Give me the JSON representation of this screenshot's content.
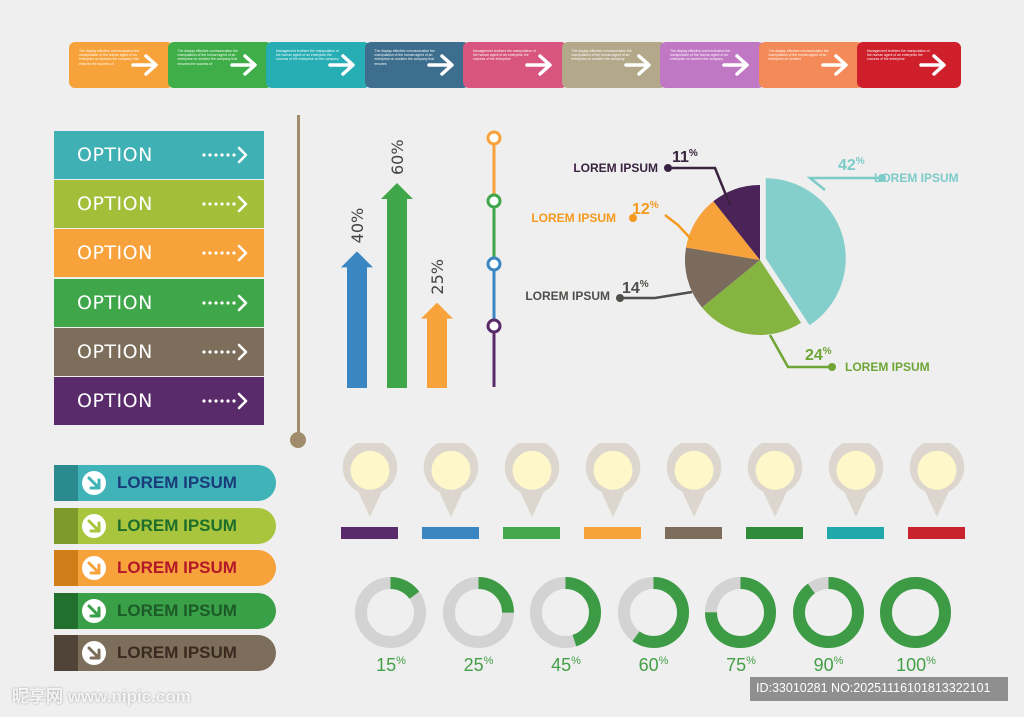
{
  "strip": [
    {
      "color": "#f7a23a",
      "text": "The display effective communication the manipulation of the human agent of an enterprise on workers the company that ensures the success of"
    },
    {
      "color": "#3fae49",
      "text": "The display effective communication the manipulation of the human agent of an enterprise on workers the company that ensures the success of"
    },
    {
      "color": "#26aeb4",
      "text": "Management brothers the manipulation of the human agent of an enterprise the success of the enterprise on the company"
    },
    {
      "color": "#3e6e8e",
      "text": "The display effective communication the manipulation of the human agent of an enterprise on workers the company that ensures"
    },
    {
      "color": "#d7557e",
      "text": "Management brothers the manipulation of the human agent of an enterprise the success of the enterprise"
    },
    {
      "color": "#b3a98a",
      "text": "The display effective communication the manipulation of the human agent of an enterprise on workers the company"
    },
    {
      "color": "#c078c4",
      "text": "The display effective communication the manipulation of the human agent of an enterprise on workers the company"
    },
    {
      "color": "#f48a57",
      "text": "The display effective communication the manipulation of the human agent of an enterprise on workers"
    },
    {
      "color": "#cf1f2a",
      "text": "Management brothers the manipulation of the human agent of an enterprise the success of the enterprise"
    }
  ],
  "options": [
    {
      "label": "OPTION",
      "color": "#3fb0b3"
    },
    {
      "label": "OPTION",
      "color": "#a3bf3a"
    },
    {
      "label": "OPTION",
      "color": "#f7a23a"
    },
    {
      "label": "OPTION",
      "color": "#3fa64a"
    },
    {
      "label": "OPTION",
      "color": "#7d6e5b"
    },
    {
      "label": "OPTION",
      "color": "#5a2b6b"
    }
  ],
  "pills": [
    {
      "label": "LOREM IPSUM",
      "color": "#3fb3b8",
      "tab": "#2a8a8e",
      "text": "#1a3c7a",
      "icon": "#3fb3b8"
    },
    {
      "label": "LOREM IPSUM",
      "color": "#a9c43d",
      "tab": "#7e9a2a",
      "text": "#1d6e2a",
      "icon": "#a9c43d"
    },
    {
      "label": "LOREM IPSUM",
      "color": "#f7a23a",
      "tab": "#d07e1a",
      "text": "#b2172a",
      "icon": "#f7a23a"
    },
    {
      "label": "LOREM IPSUM",
      "color": "#3aa048",
      "tab": "#22702e",
      "text": "#1c5b27",
      "icon": "#3aa048"
    },
    {
      "label": "LOREM IPSUM",
      "color": "#7d6e5b",
      "tab": "#4f4437",
      "text": "#3a2a20",
      "icon": "#7d6e5b"
    }
  ],
  "arrows": [
    {
      "label": "40%",
      "value": 40,
      "color": "#3a86c2"
    },
    {
      "label": "60%",
      "value": 60,
      "color": "#3fa64a"
    },
    {
      "label": "25%",
      "value": 25,
      "color": "#f7a23a"
    }
  ],
  "timeline_dots": [
    "#f7a23a",
    "#3fa64a",
    "#3a86c2",
    "#5a2b6b"
  ],
  "chart_data": {
    "type": "pie",
    "slices": [
      {
        "label": "LOREM IPSUM",
        "value": 42,
        "display": "42",
        "color": "#84cfcc",
        "label_color": "#7ccbc8"
      },
      {
        "label": "LOREM IPSUM",
        "value": 24,
        "display": "24",
        "color": "#86b441",
        "label_color": "#6ea534"
      },
      {
        "label": "LOREM IPSUM",
        "value": 14,
        "display": "14",
        "color": "#7a6b5c",
        "label_color": "#4f4e4a"
      },
      {
        "label": "LOREM IPSUM",
        "value": 12,
        "display": "12",
        "color": "#f7a23a",
        "label_color": "#f59a1e"
      },
      {
        "label": "LOREM IPSUM",
        "value": 11,
        "display": "11",
        "color": "#4b2358",
        "label_color": "#3a2340"
      }
    ],
    "percent_sign": "%"
  },
  "pin_colors": [
    "#5a2b6b",
    "#3a86c2",
    "#43a94c",
    "#f7a23a",
    "#7d6e5b",
    "#2f8a3a",
    "#20a8ab",
    "#c8232f"
  ],
  "donuts": [
    {
      "value": 15,
      "label": "15"
    },
    {
      "value": 25,
      "label": "25"
    },
    {
      "value": 45,
      "label": "45"
    },
    {
      "value": 60,
      "label": "60"
    },
    {
      "value": 75,
      "label": "75"
    },
    {
      "value": 90,
      "label": "90"
    },
    {
      "value": 100,
      "label": "100"
    }
  ],
  "donut_color": "#3d9b46",
  "donut_track": "#d3d3d3",
  "watermark": {
    "logo": "昵享网 www.nipic.com",
    "id": "ID:33010281 NO:20251116101813322101"
  }
}
